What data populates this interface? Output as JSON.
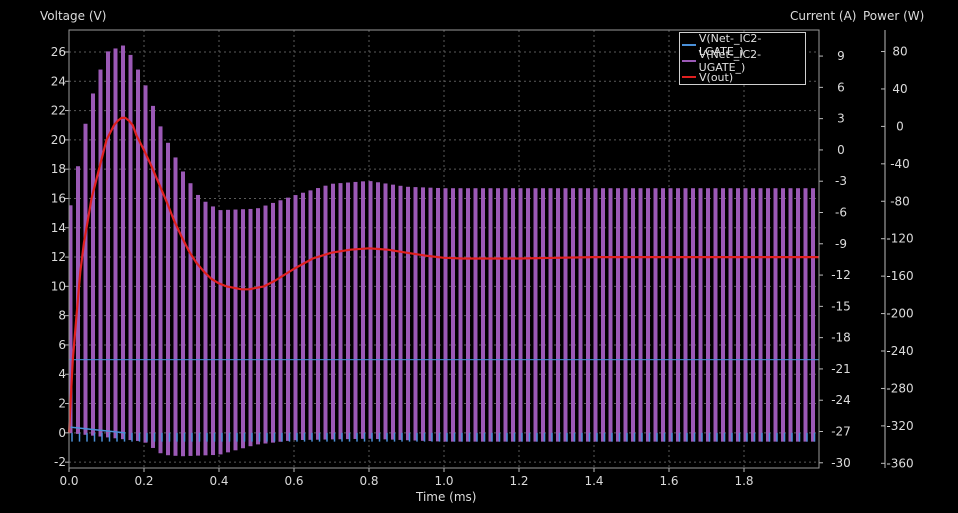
{
  "chart_data": {
    "type": "line",
    "xlabel": "Time (ms)",
    "ylabel_left": "Voltage (V)",
    "ylabel_right1": "Current (A)",
    "ylabel_right2": "Power (W)",
    "xlim": [
      0,
      2.0
    ],
    "ylim_left": [
      -2.4,
      27.5
    ],
    "ylim_current": [
      -30.5,
      11.5
    ],
    "ylim_power": [
      -365,
      103
    ],
    "x_ticks": [
      0.0,
      0.2,
      0.4,
      0.6,
      0.8,
      1.0,
      1.2,
      1.4,
      1.6,
      1.8
    ],
    "x_tick_labels": [
      "0.0",
      "0.2",
      "0.4",
      "0.6",
      "0.8",
      "1.0",
      "1.2",
      "1.4",
      "1.6",
      "1.8"
    ],
    "y_ticks_left": [
      -2,
      0,
      2,
      4,
      6,
      8,
      10,
      12,
      14,
      16,
      18,
      20,
      22,
      24,
      26
    ],
    "y_ticks_current": [
      9,
      6,
      3,
      0,
      -3,
      -6,
      -9,
      -12,
      -15,
      -18,
      -21,
      -24,
      -27,
      -30
    ],
    "y_ticks_power": [
      80,
      40,
      0,
      -40,
      -80,
      -120,
      -160,
      -200,
      -240,
      -280,
      -320,
      -360
    ],
    "grid": true,
    "legend_position": "top-right",
    "series": [
      {
        "name": "V(Net-_IC2-LGATE_)",
        "color": "#4a90d9",
        "kind": "pulse",
        "high": 5.0,
        "low": -0.6,
        "period_ms": 0.02
      },
      {
        "name": "V(Net-_IC2-UGATE_)",
        "color": "#9b59b6",
        "kind": "switching",
        "low_value": 0.0,
        "period_ms": 0.02,
        "envelope_high": [
          [
            0.0,
            15
          ],
          [
            0.03,
            19
          ],
          [
            0.05,
            22
          ],
          [
            0.08,
            24.5
          ],
          [
            0.1,
            26
          ],
          [
            0.15,
            26.5
          ],
          [
            0.2,
            24
          ],
          [
            0.25,
            20.5
          ],
          [
            0.3,
            18
          ],
          [
            0.35,
            16
          ],
          [
            0.4,
            15.2
          ],
          [
            0.5,
            15.3
          ],
          [
            0.6,
            16.2
          ],
          [
            0.7,
            17
          ],
          [
            0.8,
            17.2
          ],
          [
            0.9,
            16.8
          ],
          [
            1.0,
            16.7
          ],
          [
            2.0,
            16.7
          ]
        ],
        "envelope_low": [
          [
            0.0,
            0
          ],
          [
            0.2,
            -0.6
          ],
          [
            0.25,
            -1.5
          ],
          [
            0.3,
            -1.6
          ],
          [
            0.4,
            -1.5
          ],
          [
            0.5,
            -0.8
          ],
          [
            0.6,
            -0.5
          ],
          [
            0.8,
            -0.4
          ],
          [
            1.0,
            -0.6
          ],
          [
            2.0,
            -0.6
          ]
        ]
      },
      {
        "name": "V(out)",
        "color": "#e02020",
        "kind": "line",
        "x": [
          0.0,
          0.01,
          0.02,
          0.03,
          0.04,
          0.05,
          0.06,
          0.07,
          0.08,
          0.09,
          0.1,
          0.11,
          0.12,
          0.13,
          0.14,
          0.15,
          0.16,
          0.17,
          0.18,
          0.2,
          0.22,
          0.24,
          0.26,
          0.28,
          0.3,
          0.32,
          0.34,
          0.36,
          0.38,
          0.4,
          0.42,
          0.44,
          0.46,
          0.48,
          0.5,
          0.52,
          0.55,
          0.6,
          0.65,
          0.7,
          0.75,
          0.8,
          0.85,
          0.9,
          0.95,
          1.0,
          1.05,
          1.1,
          1.2,
          1.3,
          1.4,
          1.5,
          1.6,
          1.7,
          1.8,
          1.9,
          2.0
        ],
        "values": [
          0,
          5,
          8,
          11,
          13,
          14.5,
          16,
          17,
          18,
          19,
          20,
          20.5,
          21,
          21.3,
          21.5,
          21.5,
          21.3,
          21,
          20.3,
          19.3,
          18.2,
          17,
          15.8,
          14.5,
          13.4,
          12.4,
          11.6,
          11,
          10.5,
          10.2,
          10,
          9.9,
          9.8,
          9.8,
          9.9,
          10,
          10.4,
          11.2,
          11.9,
          12.3,
          12.5,
          12.6,
          12.5,
          12.3,
          12.1,
          11.95,
          11.9,
          11.9,
          11.9,
          11.95,
          12,
          12,
          12,
          12,
          12,
          12,
          12
        ]
      }
    ]
  }
}
